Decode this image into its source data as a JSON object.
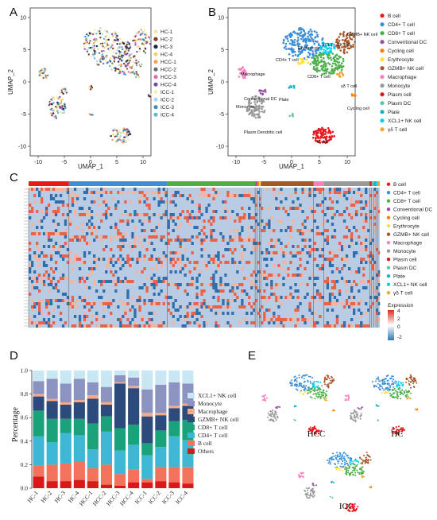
{
  "panels": {
    "a": {
      "letter": "A",
      "xlabel": "UMAP_1",
      "ylabel": "UMAP_2",
      "xticks": [
        "-10",
        "-5",
        "0",
        "5",
        "10"
      ],
      "yticks": [
        "10",
        "5",
        "0",
        "-5",
        "-10"
      ],
      "legend": [
        {
          "name": "HC-1",
          "color": "#f6e7a6"
        },
        {
          "name": "HC-2",
          "color": "#8a3b1e"
        },
        {
          "name": "HC-3",
          "color": "#1f2a44"
        },
        {
          "name": "HC-4",
          "color": "#f2d36b"
        },
        {
          "name": "HCC-1",
          "color": "#f4a259"
        },
        {
          "name": "HCC-2",
          "color": "#6b6b6b"
        },
        {
          "name": "HCC-3",
          "color": "#e56aa8"
        },
        {
          "name": "HCC-4",
          "color": "#7b4a9e"
        },
        {
          "name": "ICC-1",
          "color": "#f5f0b8"
        },
        {
          "name": "ICC-2",
          "color": "#a8d8ea"
        },
        {
          "name": "ICC-3",
          "color": "#3b8fc4"
        },
        {
          "name": "ICC-4",
          "color": "#5fb7d6"
        }
      ]
    },
    "b": {
      "letter": "B",
      "xlabel": "UMAP_1",
      "ylabel": "UMAP_2",
      "xticks": [
        "-10",
        "-5",
        "0",
        "5",
        "10"
      ],
      "yticks": [
        "10",
        "5",
        "0",
        "-5",
        "-10"
      ],
      "cluster_labels": [
        "GZMB+ NK cell",
        "XCL1+ NK cell",
        "Erythrocyte",
        "CD4+ T cell",
        "CD8+ T cell",
        "γδ T cell",
        "Macrophage",
        "Conventional DC",
        "Monocyte",
        "Plate",
        "Cycling cell",
        "Plasm Dendritic cell",
        "B cell"
      ]
    },
    "c": {
      "letter": "C",
      "expression_title": "Expression",
      "expression_ticks": [
        "4",
        "2",
        "0",
        "-2"
      ]
    },
    "d": {
      "letter": "D",
      "ylabel": "Percentage",
      "yticks": [
        "1.0",
        "0.8",
        "0.6",
        "0.4",
        "0.2",
        "0.0"
      ]
    },
    "e": {
      "letter": "E",
      "group_names": [
        "HCC",
        "HC",
        "ICC"
      ]
    }
  },
  "cell_types": [
    {
      "name": "B cell",
      "color": "#e41a1c"
    },
    {
      "name": "CD4+ T cell",
      "color": "#3a8fd6"
    },
    {
      "name": "CD8+ T cell",
      "color": "#4daf4a"
    },
    {
      "name": "Conventional DC",
      "color": "#984ea3"
    },
    {
      "name": "Cycling cell",
      "color": "#ff7f00"
    },
    {
      "name": "Erythrocyte",
      "color": "#ffe135"
    },
    {
      "name": "GZMB+ NK cell",
      "color": "#a65628"
    },
    {
      "name": "Macrophage",
      "color": "#f781bf"
    },
    {
      "name": "Monocyte",
      "color": "#999999"
    },
    {
      "name": "Plasm cell",
      "color": "#d7191c"
    },
    {
      "name": "Plasm DC",
      "color": "#66c2a5"
    },
    {
      "name": "Plate",
      "color": "#1fb0c8"
    },
    {
      "name": "XCL1+ NK cell",
      "color": "#00d2f0"
    },
    {
      "name": "γδ T cell",
      "color": "#f0a830"
    }
  ],
  "chart_data": {
    "type": "bar",
    "stacked": true,
    "ylabel": "Percentage",
    "ylim": [
      0,
      1
    ],
    "categories": [
      "HC-1",
      "HC-2",
      "HC-3",
      "HC-4",
      "HCC-1",
      "HCC-2",
      "HCC-3",
      "HCC-4",
      "ICC-1",
      "ICC-2",
      "ICC-3",
      "ICC-4"
    ],
    "series": [
      {
        "name": "Others",
        "color": "#d7191c",
        "values": [
          0.1,
          0.06,
          0.06,
          0.07,
          0.06,
          0.03,
          0.02,
          0.05,
          0.05,
          0.06,
          0.05,
          0.04
        ]
      },
      {
        "name": "B cell",
        "color": "#f2725c",
        "values": [
          0.09,
          0.14,
          0.15,
          0.16,
          0.11,
          0.17,
          0.1,
          0.11,
          0.03,
          0.12,
          0.13,
          0.14
        ]
      },
      {
        "name": "CD4+ T cell",
        "color": "#3fb6d3",
        "values": [
          0.25,
          0.19,
          0.26,
          0.22,
          0.16,
          0.28,
          0.2,
          0.21,
          0.2,
          0.17,
          0.26,
          0.23
        ]
      },
      {
        "name": "CD8+ T cell",
        "color": "#1aa37a",
        "values": [
          0.22,
          0.2,
          0.12,
          0.14,
          0.22,
          0.13,
          0.19,
          0.17,
          0.1,
          0.14,
          0.13,
          0.17
        ]
      },
      {
        "name": "GZMB+ NK cell",
        "color": "#2c4a7c",
        "values": [
          0.12,
          0.15,
          0.12,
          0.14,
          0.21,
          0.1,
          0.38,
          0.31,
          0.23,
          0.13,
          0.11,
          0.12
        ]
      },
      {
        "name": "Macrophage",
        "color": "#f4a988",
        "values": [
          0.02,
          0.02,
          0.02,
          0.02,
          0.03,
          0.02,
          0.01,
          0.02,
          0.03,
          0.02,
          0.02,
          0.02
        ]
      },
      {
        "name": "Monocyte",
        "color": "#8c93c1",
        "values": [
          0.11,
          0.17,
          0.16,
          0.18,
          0.11,
          0.13,
          0.06,
          0.07,
          0.2,
          0.24,
          0.2,
          0.17
        ]
      },
      {
        "name": "XCL1+ NK cell",
        "color": "#c9e7f2",
        "values": [
          0.09,
          0.07,
          0.11,
          0.07,
          0.1,
          0.14,
          0.04,
          0.06,
          0.16,
          0.12,
          0.1,
          0.11
        ]
      }
    ],
    "legend_order": [
      "XCL1+ NK cell",
      "Monocyte",
      "Macrophage",
      "GZMB+ NK cell",
      "CD8+ T cell",
      "CD4+ T cell",
      "B cell",
      "Others"
    ]
  }
}
